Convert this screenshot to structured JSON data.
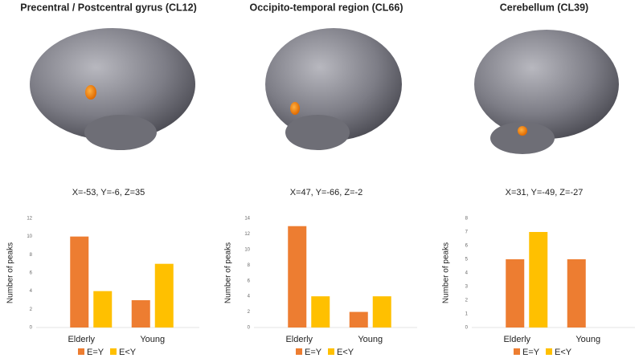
{
  "chart_data": [
    {
      "type": "bar",
      "title": "Precentral / Postcentral gyrus (CL12)",
      "subtitle": "X=-53, Y=-6, Z=35",
      "y_label": "Number of peaks",
      "categories": [
        "Elderly",
        "Young"
      ],
      "series": [
        {
          "name": "E=Y",
          "color": "#ed7d31",
          "values": [
            10,
            3
          ]
        },
        {
          "name": "E<Y",
          "color": "#ffc000",
          "values": [
            4,
            7
          ]
        }
      ],
      "ylim": [
        0,
        12
      ],
      "yticks": [
        0,
        2,
        4,
        6,
        8,
        10,
        12
      ],
      "grid": false,
      "legend": "bottom"
    },
    {
      "type": "bar",
      "title": "Occipito-temporal region (CL66)",
      "subtitle": "X=47, Y=-66, Z=-2",
      "y_label": "Number of peaks",
      "categories": [
        "Elderly",
        "Young"
      ],
      "series": [
        {
          "name": "E=Y",
          "color": "#ed7d31",
          "values": [
            13,
            2
          ]
        },
        {
          "name": "E<Y",
          "color": "#ffc000",
          "values": [
            4,
            4
          ]
        }
      ],
      "ylim": [
        0,
        14
      ],
      "yticks": [
        0,
        2,
        4,
        6,
        8,
        10,
        12,
        14
      ],
      "grid": false,
      "legend": "bottom"
    },
    {
      "type": "bar",
      "title": "Cerebellum (CL39)",
      "subtitle": "X=31, Y=-49, Z=-27",
      "y_label": "Number of peaks",
      "categories": [
        "Elderly",
        "Young"
      ],
      "series": [
        {
          "name": "E=Y",
          "color": "#ed7d31",
          "values": [
            5,
            5
          ]
        },
        {
          "name": "E<Y",
          "color": "#ffc000",
          "values": [
            7,
            null
          ]
        }
      ],
      "ylim": [
        0,
        8
      ],
      "yticks": [
        0,
        1,
        2,
        3,
        4,
        5,
        6,
        7,
        8
      ],
      "grid": false,
      "legend": "bottom"
    }
  ]
}
